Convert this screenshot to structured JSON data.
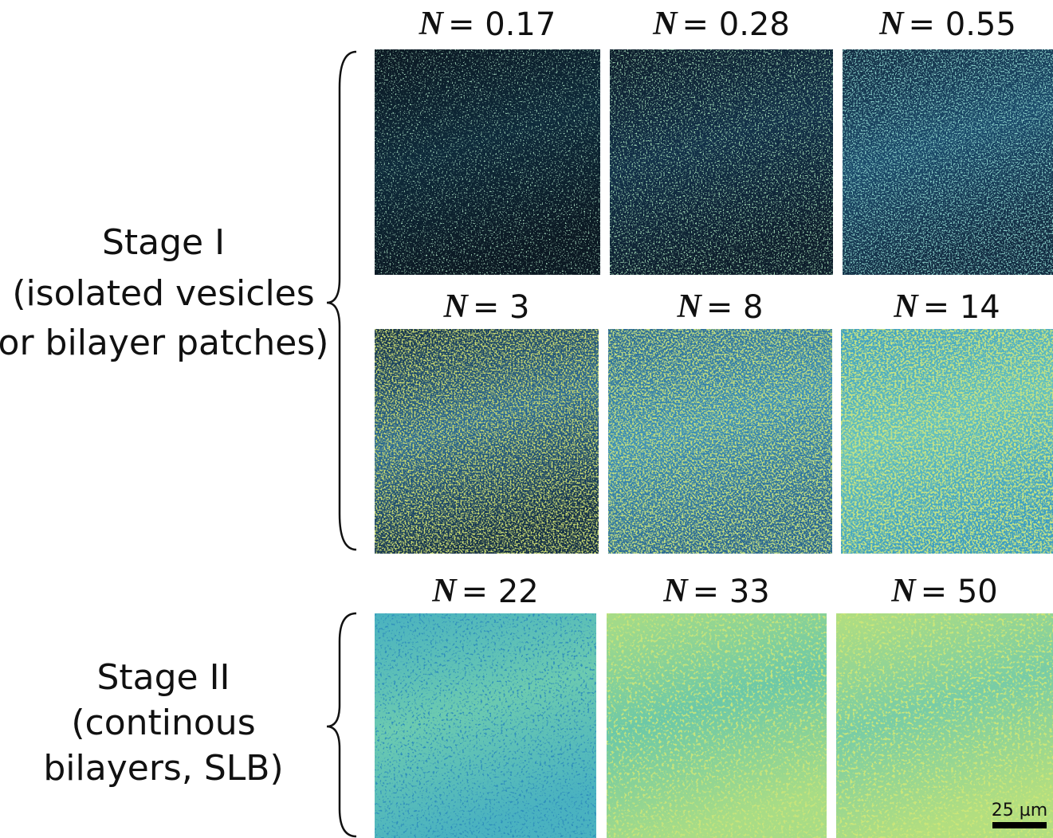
{
  "stages": [
    {
      "lines": [
        "Stage I",
        "(isolated vesicles",
        "or bilayer patches)"
      ]
    },
    {
      "lines": [
        "Stage II",
        "(continous",
        "bilayers, SLB)"
      ]
    }
  ],
  "panels": [
    {
      "symbol": "N",
      "text": "= 0.17"
    },
    {
      "symbol": "N",
      "text": "= 0.28"
    },
    {
      "symbol": "N",
      "text": "= 0.55"
    },
    {
      "symbol": "N",
      "text": "= 3"
    },
    {
      "symbol": "N",
      "text": "= 8"
    },
    {
      "symbol": "N",
      "text": "= 14"
    },
    {
      "symbol": "N",
      "text": "= 22"
    },
    {
      "symbol": "N",
      "text": "= 33"
    },
    {
      "symbol": "N",
      "text": "= 50"
    }
  ],
  "scale_bar": "25 µm"
}
